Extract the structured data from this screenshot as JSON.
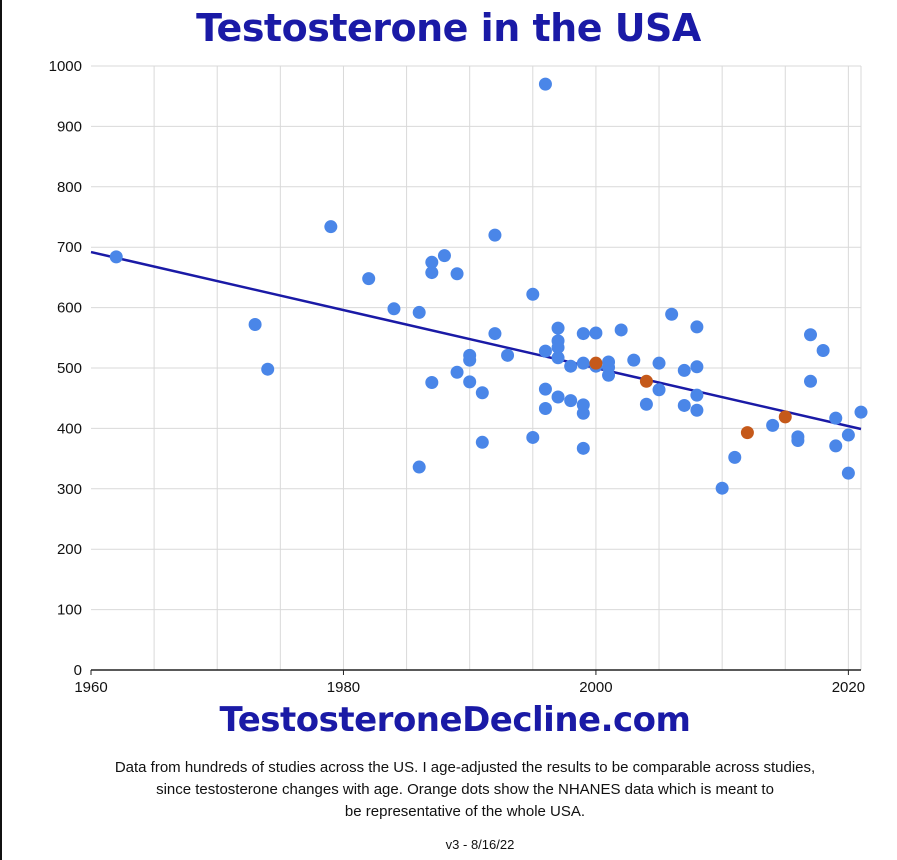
{
  "header": {
    "title": "Testosterone in the USA"
  },
  "footer": {
    "site": "TestosteroneDecline.com",
    "caption_lines": [
      "Data from hundreds of studies across the US. I age-adjusted the results to be comparable across studies,",
      "since testosterone changes with age. Orange dots show the NHANES data which is meant to",
      "be representative of the whole USA."
    ],
    "version": "v3 - 8/16/22"
  },
  "colors": {
    "title": "#1a1aa6",
    "studies": "#4a86e8",
    "nhanes": "#c5591a",
    "trend": "#1a1aa6",
    "grid": "#d9d9d9"
  },
  "chart_data": {
    "type": "scatter",
    "title": "Testosterone in the USA",
    "xlabel": "",
    "ylabel": "",
    "xlim": [
      1960,
      2021
    ],
    "ylim": [
      0,
      1000
    ],
    "x_ticks": [
      1960,
      1980,
      2000,
      2020
    ],
    "y_ticks": [
      0,
      100,
      200,
      300,
      400,
      500,
      600,
      700,
      800,
      900,
      1000
    ],
    "grid": true,
    "series": [
      {
        "color": "#4a86e8",
        "points": [
          [
            1962,
            684
          ],
          [
            1973,
            572
          ],
          [
            1974,
            498
          ],
          [
            1979,
            734
          ],
          [
            1982,
            648
          ],
          [
            1984,
            598
          ],
          [
            1986,
            592
          ],
          [
            1986,
            336
          ],
          [
            1987,
            675
          ],
          [
            1987,
            658
          ],
          [
            1987,
            476
          ],
          [
            1988,
            686
          ],
          [
            1989,
            656
          ],
          [
            1989,
            493
          ],
          [
            1990,
            521
          ],
          [
            1990,
            513
          ],
          [
            1990,
            477
          ],
          [
            1991,
            459
          ],
          [
            1991,
            377
          ],
          [
            1992,
            720
          ],
          [
            1992,
            557
          ],
          [
            1993,
            521
          ],
          [
            1995,
            622
          ],
          [
            1995,
            385
          ],
          [
            1996,
            970
          ],
          [
            1996,
            528
          ],
          [
            1996,
            465
          ],
          [
            1996,
            433
          ],
          [
            1997,
            566
          ],
          [
            1997,
            545
          ],
          [
            1997,
            534
          ],
          [
            1997,
            517
          ],
          [
            1997,
            452
          ],
          [
            1998,
            503
          ],
          [
            1998,
            446
          ],
          [
            1999,
            557
          ],
          [
            1999,
            508
          ],
          [
            1999,
            439
          ],
          [
            1999,
            425
          ],
          [
            1999,
            367
          ],
          [
            2000,
            558
          ],
          [
            2000,
            503
          ],
          [
            2001,
            510
          ],
          [
            2001,
            501
          ],
          [
            2001,
            488
          ],
          [
            2002,
            563
          ],
          [
            2003,
            513
          ],
          [
            2004,
            440
          ],
          [
            2005,
            508
          ],
          [
            2005,
            464
          ],
          [
            2006,
            589
          ],
          [
            2007,
            496
          ],
          [
            2007,
            438
          ],
          [
            2008,
            568
          ],
          [
            2008,
            502
          ],
          [
            2008,
            455
          ],
          [
            2008,
            430
          ],
          [
            2010,
            301
          ],
          [
            2011,
            352
          ],
          [
            2014,
            405
          ],
          [
            2016,
            386
          ],
          [
            2016,
            380
          ],
          [
            2017,
            555
          ],
          [
            2017,
            478
          ],
          [
            2018,
            529
          ],
          [
            2019,
            417
          ],
          [
            2019,
            371
          ],
          [
            2020,
            389
          ],
          [
            2020,
            326
          ],
          [
            2021,
            427
          ]
        ]
      },
      {
        "color": "#c5591a",
        "points": [
          [
            2000,
            508
          ],
          [
            2004,
            478
          ],
          [
            2012,
            393
          ],
          [
            2015,
            419
          ]
        ]
      }
    ],
    "trendline": {
      "color": "#1a1aa6",
      "x": [
        1960,
        2021
      ],
      "y": [
        692,
        399
      ]
    }
  }
}
